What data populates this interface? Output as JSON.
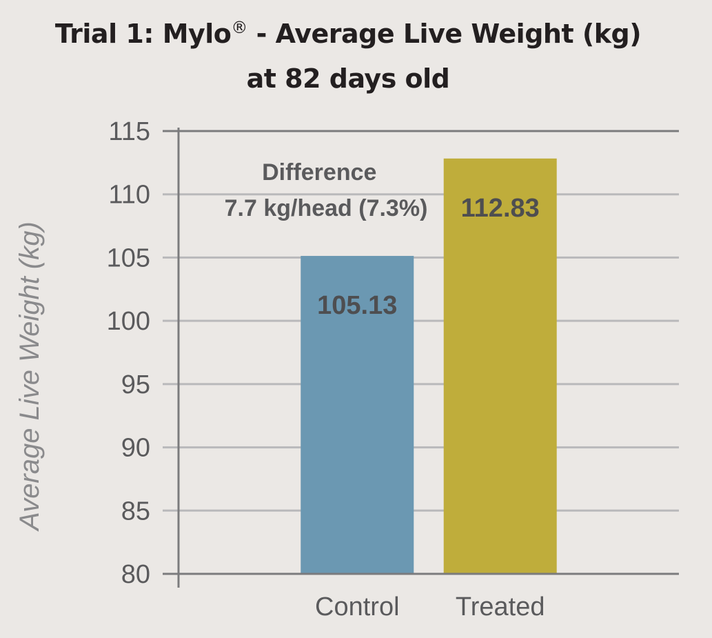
{
  "chart_data": {
    "type": "bar",
    "title_part1": "Trial 1: Mylo",
    "title_reg": "®",
    "title_part2": " - Average Live Weight (kg)",
    "subtitle": "at 82 days old",
    "ylabel": "Average Live Weight (kg)",
    "xlabel": "",
    "categories": [
      "Control",
      "Treated"
    ],
    "values": [
      105.13,
      112.83
    ],
    "value_labels": [
      "105.13",
      "112.83"
    ],
    "colors": [
      "#6b98b2",
      "#bfad3b"
    ],
    "ylim": [
      80,
      115
    ],
    "yticks": [
      80,
      85,
      90,
      95,
      100,
      105,
      110,
      115
    ],
    "grid": true,
    "annotation": [
      "Difference",
      "7.7 kg/head (7.3%)"
    ]
  }
}
